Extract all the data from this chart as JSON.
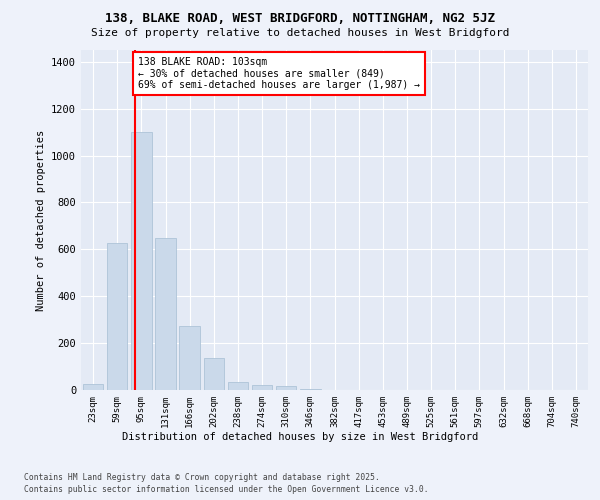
{
  "title_line1": "138, BLAKE ROAD, WEST BRIDGFORD, NOTTINGHAM, NG2 5JZ",
  "title_line2": "Size of property relative to detached houses in West Bridgford",
  "xlabel": "Distribution of detached houses by size in West Bridgford",
  "ylabel": "Number of detached properties",
  "categories": [
    "23sqm",
    "59sqm",
    "95sqm",
    "131sqm",
    "166sqm",
    "202sqm",
    "238sqm",
    "274sqm",
    "310sqm",
    "346sqm",
    "382sqm",
    "417sqm",
    "453sqm",
    "489sqm",
    "525sqm",
    "561sqm",
    "597sqm",
    "632sqm",
    "668sqm",
    "704sqm",
    "740sqm"
  ],
  "values": [
    25,
    625,
    1100,
    650,
    275,
    135,
    35,
    20,
    15,
    5,
    2,
    1,
    0,
    0,
    0,
    0,
    0,
    0,
    0,
    0,
    0
  ],
  "bar_color": "#cad9ea",
  "bar_edge_color": "#aec4d8",
  "vline_x": 1.72,
  "vline_color": "red",
  "annotation_text": "138 BLAKE ROAD: 103sqm\n← 30% of detached houses are smaller (849)\n69% of semi-detached houses are larger (1,987) →",
  "annotation_box_color": "white",
  "annotation_box_edge": "red",
  "ylim": [
    0,
    1450
  ],
  "yticks": [
    0,
    200,
    400,
    600,
    800,
    1000,
    1200,
    1400
  ],
  "footnote_line1": "Contains HM Land Registry data © Crown copyright and database right 2025.",
  "footnote_line2": "Contains public sector information licensed under the Open Government Licence v3.0.",
  "bg_color": "#eef2fa",
  "plot_bg_color": "#e4eaf5"
}
